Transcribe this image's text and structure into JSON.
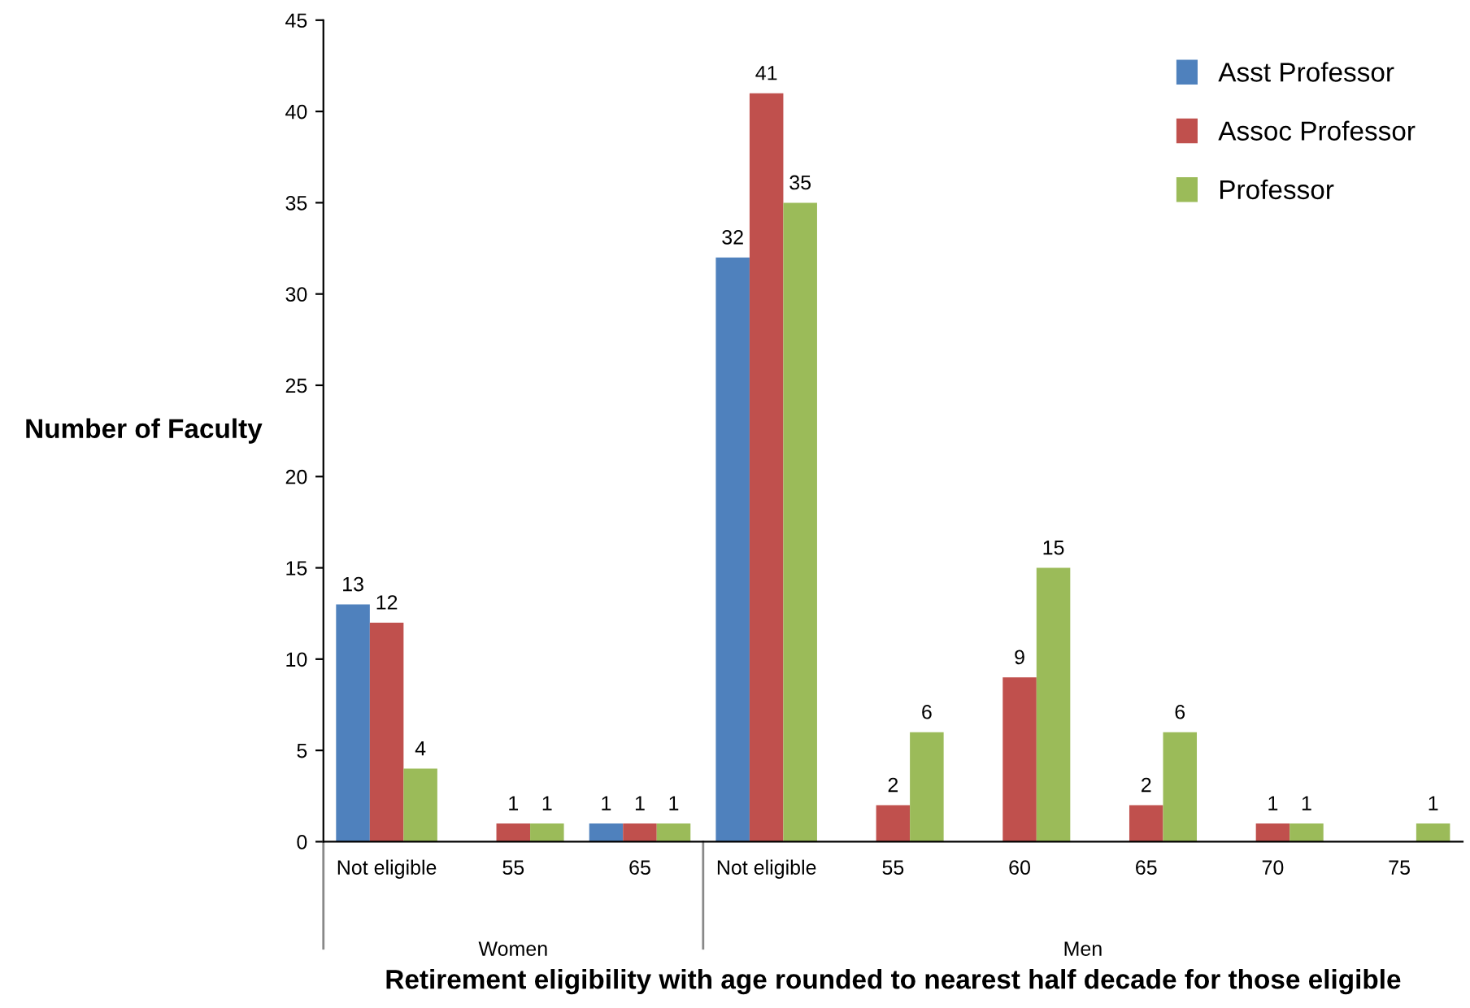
{
  "chart_data": {
    "type": "bar",
    "xlabel": "Retirement eligibility with age rounded to nearest half decade for those eligible",
    "ylabel": "Number of Faculty",
    "categories": [
      "Not eligible",
      "55",
      "65",
      "Not eligible",
      "55",
      "60",
      "65",
      "70",
      "75"
    ],
    "series": [
      {
        "name": "Asst Professor",
        "color": "#4f81bd",
        "values": [
          13,
          0,
          1,
          32,
          0,
          0,
          0,
          0,
          0
        ],
        "value_labels": [
          "13",
          null,
          "1",
          "32",
          null,
          null,
          null,
          null,
          null
        ]
      },
      {
        "name": "Assoc Professor",
        "color": "#c0504d",
        "values": [
          12,
          1,
          1,
          41,
          2,
          9,
          2,
          1,
          0
        ],
        "value_labels": [
          "12",
          "1",
          "1",
          "41",
          "2",
          "9",
          "2",
          "1",
          null
        ]
      },
      {
        "name": "Professor",
        "color": "#9bbb59",
        "values": [
          4,
          1,
          1,
          35,
          6,
          15,
          6,
          1,
          1
        ],
        "value_labels": [
          "4",
          "1",
          "1",
          "35",
          "6",
          "15",
          "6",
          "1",
          "1"
        ]
      }
    ],
    "annotations": [
      "Women",
      "Men"
    ],
    "ylim": [
      0,
      45
    ],
    "yticks": [
      0,
      5,
      10,
      15,
      20,
      25,
      30,
      35,
      40,
      45
    ],
    "grid": false,
    "legend": "top right"
  }
}
